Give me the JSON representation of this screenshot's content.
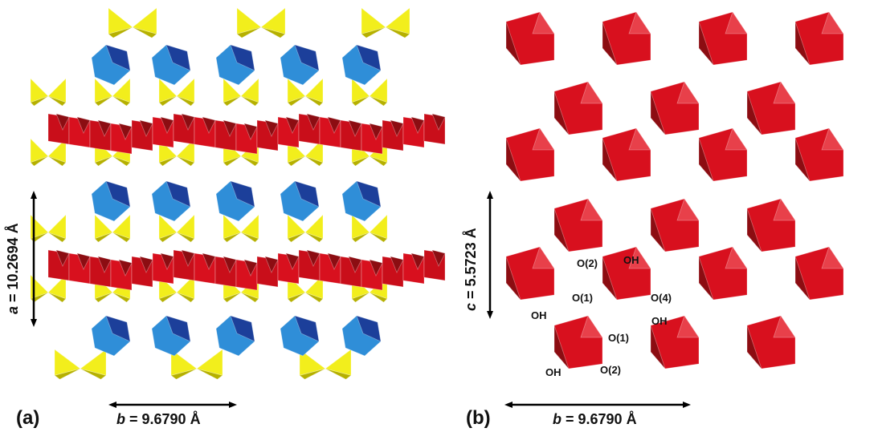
{
  "colors": {
    "octahedron": "#d8101e",
    "octahedron_dark": "#8c0d12",
    "tetrahedron": "#f2ee1c",
    "tetrahedron_dark": "#b5b000",
    "blue_polyhedron": "#2f8ed8",
    "blue_dark": "#1c3f9a"
  },
  "panel_a": {
    "label": "(a)",
    "b_axis": {
      "symbol": "b",
      "value": " = 9.6790 Å"
    },
    "a_axis": {
      "symbol": "a",
      "value": " = 10.2694 Å"
    }
  },
  "panel_b": {
    "label": "(b)",
    "b_axis": {
      "symbol": "b",
      "value": " = 9.6790 Å"
    },
    "c_axis": {
      "symbol": "c",
      "value": " = 5.5723 Å"
    },
    "atom_labels": [
      "O(2)",
      "OH",
      "O(1)",
      "O(4)",
      "OH",
      "OH",
      "O(1)",
      "OH",
      "O(2)"
    ]
  }
}
